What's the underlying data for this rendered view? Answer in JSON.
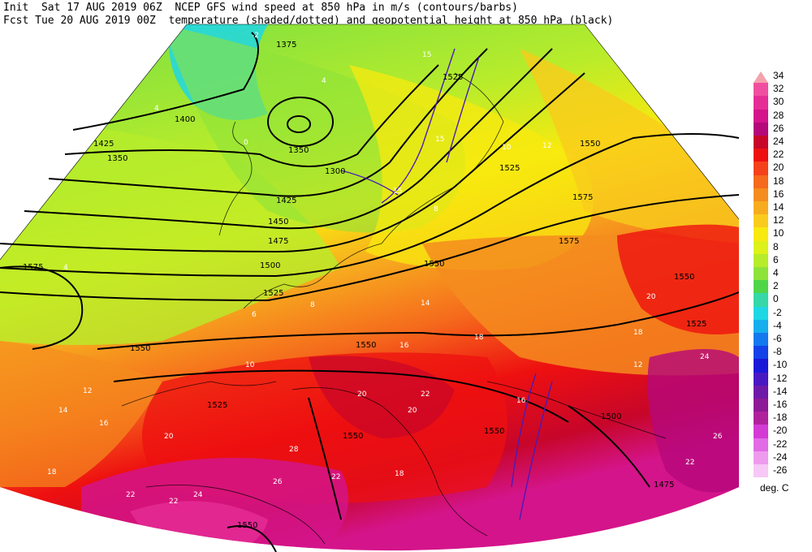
{
  "header": {
    "line1": "Init  Sat 17 AUG 2019 06Z  NCEP GFS wind speed at 850 hPa in m/s (contours/barbs)",
    "line2": "Fcst Tue 20 AUG 2019 00Z  temperature (shaded/dotted) and geopotential height at 850 hPa (black)"
  },
  "legend": {
    "unit": "deg. C",
    "entries": [
      {
        "label": "34",
        "color": "#f3a3ad"
      },
      {
        "label": "32",
        "color": "#f04fa0"
      },
      {
        "label": "30",
        "color": "#e62d96"
      },
      {
        "label": "28",
        "color": "#d4148a"
      },
      {
        "label": "26",
        "color": "#b5087a"
      },
      {
        "label": "24",
        "color": "#c7062a"
      },
      {
        "label": "22",
        "color": "#ee1010"
      },
      {
        "label": "20",
        "color": "#f5411a"
      },
      {
        "label": "18",
        "color": "#f56a1c"
      },
      {
        "label": "16",
        "color": "#f58c1e"
      },
      {
        "label": "14",
        "color": "#f7ac1f"
      },
      {
        "label": "12",
        "color": "#f9cc1c"
      },
      {
        "label": "10",
        "color": "#f8e90f"
      },
      {
        "label": "8",
        "color": "#dcf219"
      },
      {
        "label": "6",
        "color": "#b7ec2b"
      },
      {
        "label": "4",
        "color": "#8ee33b"
      },
      {
        "label": "2",
        "color": "#4fd54a"
      },
      {
        "label": "0",
        "color": "#35d8a6"
      },
      {
        "label": "-2",
        "color": "#1ed7e4"
      },
      {
        "label": "-4",
        "color": "#17aeee"
      },
      {
        "label": "-6",
        "color": "#1479ee"
      },
      {
        "label": "-8",
        "color": "#1442e8"
      },
      {
        "label": "-10",
        "color": "#1a18d8"
      },
      {
        "label": "-12",
        "color": "#4818c2"
      },
      {
        "label": "-14",
        "color": "#6e1aa8"
      },
      {
        "label": "-16",
        "color": "#8d1a96"
      },
      {
        "label": "-18",
        "color": "#b0229c"
      },
      {
        "label": "-20",
        "color": "#d43bd5"
      },
      {
        "label": "-22",
        "color": "#e26be6"
      },
      {
        "label": "-24",
        "color": "#ee9bee"
      },
      {
        "label": "-26",
        "color": "#f7c8f5"
      }
    ]
  },
  "map": {
    "height_labels": [
      "1375",
      "1400",
      "1425",
      "1350",
      "1350",
      "1300",
      "1425",
      "1450",
      "1475",
      "1500",
      "1525",
      "1550",
      "1575",
      "1550",
      "1525",
      "1575",
      "1575",
      "1550",
      "1550",
      "1525",
      "1550",
      "1525",
      "1550",
      "1550",
      "1500",
      "1475",
      "1525",
      "1550"
    ],
    "temp_labels": [
      "-2",
      "0",
      "4",
      "4",
      "4",
      "6",
      "8",
      "8",
      "10",
      "10",
      "12",
      "14",
      "16",
      "18",
      "20",
      "22",
      "24",
      "26",
      "28",
      "14",
      "18",
      "20",
      "16",
      "12",
      "18",
      "20",
      "22",
      "16",
      "24",
      "26",
      "22",
      "20",
      "18",
      "22",
      "22",
      "12",
      "15",
      "15",
      "15"
    ]
  }
}
